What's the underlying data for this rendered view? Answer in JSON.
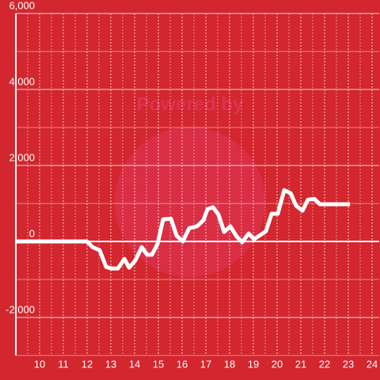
{
  "chart_data": {
    "type": "line",
    "watermark": "Powered by",
    "x": [
      9,
      12,
      12.23,
      12.53,
      12.8,
      13.03,
      13.3,
      13.57,
      13.77,
      14.03,
      14.3,
      14.53,
      14.73,
      14.97,
      15.2,
      15.53,
      15.77,
      16.03,
      16.3,
      16.63,
      16.9,
      17.07,
      17.3,
      17.53,
      17.77,
      18.03,
      18.3,
      18.53,
      18.8,
      19.03,
      19.3,
      19.53,
      19.77,
      20.03,
      20.3,
      20.57,
      20.8,
      21.07,
      21.3,
      21.57,
      21.8,
      23.07
    ],
    "series": [
      {
        "color": "#ffffff",
        "values": [
          0,
          0,
          -150,
          -230,
          -670,
          -710,
          -710,
          -460,
          -690,
          -500,
          -150,
          -350,
          -350,
          -60,
          580,
          600,
          150,
          0,
          350,
          400,
          560,
          850,
          900,
          710,
          250,
          400,
          130,
          -20,
          210,
          60,
          170,
          270,
          730,
          730,
          1350,
          1270,
          940,
          810,
          1100,
          1120,
          980,
          980
        ]
      }
    ],
    "xlim": [
      9,
      24.3
    ],
    "xticks": [
      10,
      11,
      12,
      13,
      14,
      15,
      16,
      17,
      18,
      19,
      20,
      21,
      22,
      23,
      24
    ],
    "ylim": [
      -3000,
      6000
    ],
    "yticks": [
      {
        "value": -2000,
        "label": "-2,000"
      },
      0,
      {
        "value": 2000,
        "label": "2,000"
      },
      {
        "value": 4000,
        "label": "4,000"
      },
      {
        "value": 6000,
        "label": "6,000"
      }
    ],
    "grid": true
  }
}
